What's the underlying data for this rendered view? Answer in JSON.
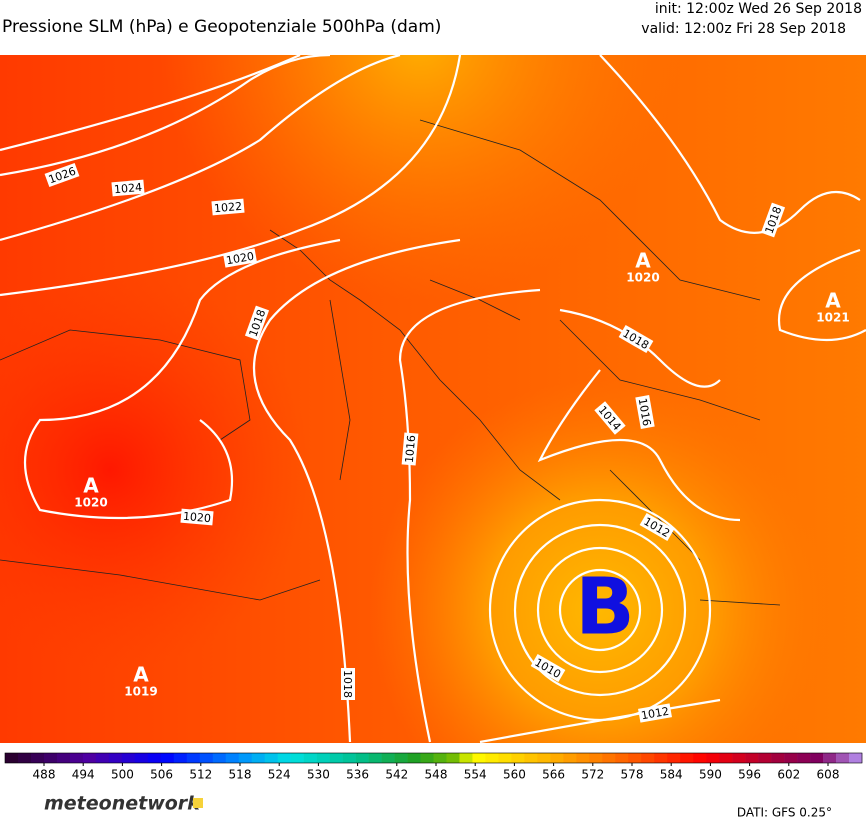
{
  "header": {
    "title": "Pressione SLM (hPa) e Geopotenziale 500hPa (dam)",
    "init": "init: 12:00z Wed 26 Sep 2018",
    "valid": "valid: 12:00z Fri 28 Sep 2018"
  },
  "map": {
    "isobar_labels": [
      "1026",
      "1024",
      "1022",
      "1020",
      "1018",
      "1020",
      "1016",
      "1018",
      "1018",
      "1016",
      "1014",
      "1012",
      "1010",
      "1012",
      "1018"
    ],
    "centers": [
      {
        "letter": "A",
        "value": "1020"
      },
      {
        "letter": "A",
        "value": "1021"
      },
      {
        "letter": "A",
        "value": "1020"
      },
      {
        "letter": "A",
        "value": "1019"
      },
      {
        "letter": "B"
      }
    ]
  },
  "colorbar": {
    "labels": [
      488,
      494,
      500,
      506,
      512,
      518,
      524,
      530,
      536,
      542,
      548,
      554,
      560,
      566,
      572,
      578,
      584,
      590,
      596,
      602,
      608
    ]
  },
  "footer": {
    "brand": "meteonetwork",
    "source": "DATI:  GFS  0.25°"
  }
}
